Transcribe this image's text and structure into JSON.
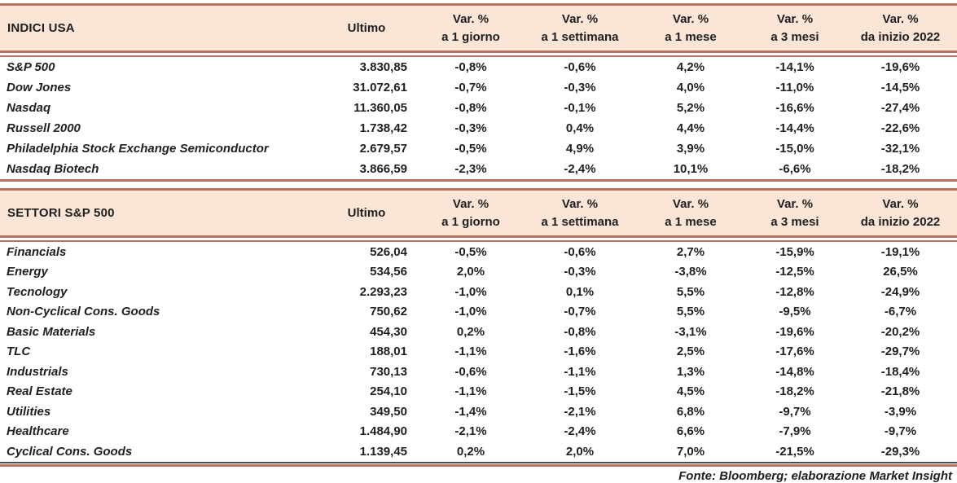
{
  "colors": {
    "header_bg": "#fbe5d6",
    "accent_border": "#b9735f",
    "dark_rule": "#4d4d4d",
    "text": "#1f1f1f"
  },
  "columns": {
    "ultimo": "Ultimo",
    "var_label": "Var. %",
    "sub": [
      "a 1 giorno",
      "a 1 settimana",
      "a 1 mese",
      "a 3 mesi",
      "da inizio 2022"
    ]
  },
  "tables": [
    {
      "title": "INDICI USA",
      "rows": [
        {
          "name": "S&P 500",
          "ultimo": "3.830,85",
          "vars": [
            "-0,8%",
            "-0,6%",
            "4,2%",
            "-14,1%",
            "-19,6%"
          ]
        },
        {
          "name": "Dow Jones",
          "ultimo": "31.072,61",
          "vars": [
            "-0,7%",
            "-0,3%",
            "4,0%",
            "-11,0%",
            "-14,5%"
          ]
        },
        {
          "name": "Nasdaq",
          "ultimo": "11.360,05",
          "vars": [
            "-0,8%",
            "-0,1%",
            "5,2%",
            "-16,6%",
            "-27,4%"
          ]
        },
        {
          "name": "Russell 2000",
          "ultimo": "1.738,42",
          "vars": [
            "-0,3%",
            "0,4%",
            "4,4%",
            "-14,4%",
            "-22,6%"
          ]
        },
        {
          "name": "Philadelphia Stock Exchange Semiconductor",
          "ultimo": "2.679,57",
          "vars": [
            "-0,5%",
            "4,9%",
            "3,9%",
            "-15,0%",
            "-32,1%"
          ]
        },
        {
          "name": "Nasdaq Biotech",
          "ultimo": "3.866,59",
          "vars": [
            "-2,3%",
            "-2,4%",
            "10,1%",
            "-6,6%",
            "-18,2%"
          ]
        }
      ]
    },
    {
      "title": "SETTORI S&P 500",
      "rows": [
        {
          "name": "Financials",
          "ultimo": "526,04",
          "vars": [
            "-0,5%",
            "-0,6%",
            "2,7%",
            "-15,9%",
            "-19,1%"
          ]
        },
        {
          "name": "Energy",
          "ultimo": "534,56",
          "vars": [
            "2,0%",
            "-0,3%",
            "-3,8%",
            "-12,5%",
            "26,5%"
          ]
        },
        {
          "name": "Tecnology",
          "ultimo": "2.293,23",
          "vars": [
            "-1,0%",
            "0,1%",
            "5,5%",
            "-12,8%",
            "-24,9%"
          ]
        },
        {
          "name": "Non-Cyclical Cons. Goods",
          "ultimo": "750,62",
          "vars": [
            "-1,0%",
            "-0,7%",
            "5,5%",
            "-9,5%",
            "-6,7%"
          ]
        },
        {
          "name": "Basic Materials",
          "ultimo": "454,30",
          "vars": [
            "0,2%",
            "-0,8%",
            "-3,1%",
            "-19,6%",
            "-20,2%"
          ]
        },
        {
          "name": "TLC",
          "ultimo": "188,01",
          "vars": [
            "-1,1%",
            "-1,6%",
            "2,5%",
            "-17,6%",
            "-29,7%"
          ]
        },
        {
          "name": "Industrials",
          "ultimo": "730,13",
          "vars": [
            "-0,6%",
            "-1,1%",
            "1,3%",
            "-14,8%",
            "-18,4%"
          ]
        },
        {
          "name": "Real Estate",
          "ultimo": "254,10",
          "vars": [
            "-1,1%",
            "-1,5%",
            "4,5%",
            "-18,2%",
            "-21,8%"
          ]
        },
        {
          "name": "Utilities",
          "ultimo": "349,50",
          "vars": [
            "-1,4%",
            "-2,1%",
            "6,8%",
            "-9,7%",
            "-3,9%"
          ]
        },
        {
          "name": "Healthcare",
          "ultimo": "1.484,90",
          "vars": [
            "-2,1%",
            "-2,4%",
            "6,6%",
            "-7,9%",
            "-9,7%"
          ]
        },
        {
          "name": "Cyclical Cons. Goods",
          "ultimo": "1.139,45",
          "vars": [
            "0,2%",
            "2,0%",
            "7,0%",
            "-21,5%",
            "-29,3%"
          ]
        }
      ]
    }
  ],
  "footer": "Fonte: Bloomberg; elaborazione Market Insight"
}
